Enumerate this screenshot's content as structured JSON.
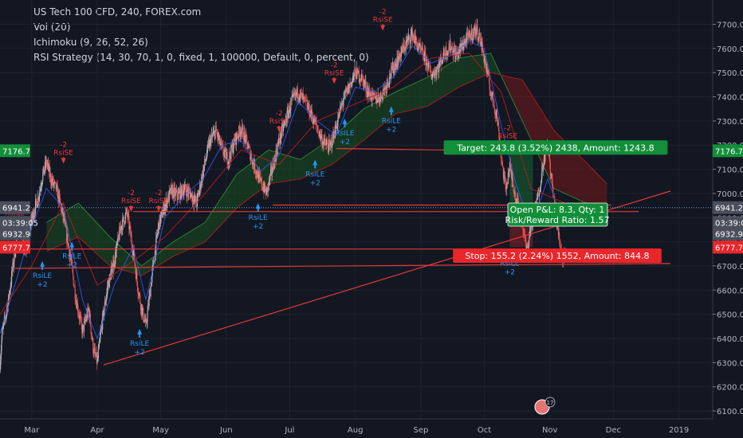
{
  "legend": {
    "symbol": "US Tech 100 CFD, 240, FOREX.com",
    "vol": "Vol (20)",
    "ichimoku": "Ichimoku (9, 26, 52, 26)",
    "strategy": "RSI Strategy (14, 30, 70, 1, 0, fixed, 1, 100000, Default, 0, percent, 0)"
  },
  "colors": {
    "background": "#131722",
    "up": "#b2b5be",
    "down": "#ef5350",
    "target": "#138f3a",
    "stop": "#e8262b",
    "buy_signal": "#2196f3",
    "sell_signal": "#e53935",
    "trendline": "#e53935",
    "cloud_green": "#1b5e20",
    "cloud_red": "#8b1a1a"
  },
  "chart_data": {
    "type": "candlestick",
    "ylim": [
      6080,
      7760
    ],
    "y_ticks": [
      6100,
      6200,
      6300,
      6400,
      6500,
      6600,
      6700,
      6800,
      6900,
      7000,
      7100,
      7200,
      7300,
      7400,
      7500,
      7600,
      7700
    ],
    "y_tick_labels": [
      "6100.0",
      "6200.0",
      "6300.0",
      "6400.0",
      "6500.0",
      "6600.0",
      "6700.0",
      "6800.0",
      "6900.0",
      "7000.0",
      "7100.0",
      "7200.0",
      "7300.0",
      "7400.0",
      "7500.0",
      "7600.0",
      "7700.0"
    ],
    "x_labels": [
      "Mar",
      "Apr",
      "May",
      "Jun",
      "Jul",
      "Aug",
      "Sep",
      "Oct",
      "Nov",
      "Dec",
      "2019"
    ],
    "x_label_days": [
      28,
      59,
      89,
      120,
      150,
      181,
      212,
      242,
      273,
      303,
      334
    ],
    "xlim_days": [
      13,
      350
    ],
    "close_path": [
      [
        13,
        6300
      ],
      [
        14,
        6420
      ],
      [
        17,
        6560
      ],
      [
        20,
        6760
      ],
      [
        22,
        6870
      ],
      [
        25,
        6750
      ],
      [
        28,
        6900
      ],
      [
        31,
        6980
      ],
      [
        33,
        7070
      ],
      [
        35,
        7130
      ],
      [
        37,
        7060
      ],
      [
        40,
        7010
      ],
      [
        43,
        6900
      ],
      [
        46,
        6750
      ],
      [
        49,
        6560
      ],
      [
        52,
        6430
      ],
      [
        55,
        6520
      ],
      [
        57,
        6360
      ],
      [
        59,
        6300
      ],
      [
        61,
        6450
      ],
      [
        64,
        6620
      ],
      [
        67,
        6720
      ],
      [
        70,
        6860
      ],
      [
        73,
        6920
      ],
      [
        76,
        6760
      ],
      [
        78,
        6620
      ],
      [
        80,
        6520
      ],
      [
        82,
        6450
      ],
      [
        84,
        6600
      ],
      [
        86,
        6740
      ],
      [
        88,
        6870
      ],
      [
        91,
        6950
      ],
      [
        94,
        7010
      ],
      [
        97,
        6990
      ],
      [
        100,
        7020
      ],
      [
        103,
        7000
      ],
      [
        106,
        6960
      ],
      [
        109,
        7090
      ],
      [
        112,
        7210
      ],
      [
        115,
        7260
      ],
      [
        118,
        7180
      ],
      [
        121,
        7140
      ],
      [
        124,
        7220
      ],
      [
        127,
        7270
      ],
      [
        130,
        7200
      ],
      [
        133,
        7120
      ],
      [
        136,
        7050
      ],
      [
        139,
        7000
      ],
      [
        142,
        7110
      ],
      [
        145,
        7220
      ],
      [
        148,
        7300
      ],
      [
        151,
        7380
      ],
      [
        154,
        7420
      ],
      [
        157,
        7380
      ],
      [
        160,
        7330
      ],
      [
        163,
        7270
      ],
      [
        166,
        7210
      ],
      [
        169,
        7190
      ],
      [
        172,
        7280
      ],
      [
        175,
        7380
      ],
      [
        178,
        7440
      ],
      [
        181,
        7500
      ],
      [
        184,
        7480
      ],
      [
        187,
        7420
      ],
      [
        190,
        7390
      ],
      [
        193,
        7400
      ],
      [
        196,
        7460
      ],
      [
        199,
        7520
      ],
      [
        202,
        7570
      ],
      [
        205,
        7620
      ],
      [
        208,
        7660
      ],
      [
        211,
        7600
      ],
      [
        214,
        7560
      ],
      [
        217,
        7490
      ],
      [
        220,
        7520
      ],
      [
        223,
        7580
      ],
      [
        226,
        7610
      ],
      [
        229,
        7570
      ],
      [
        232,
        7620
      ],
      [
        235,
        7650
      ],
      [
        238,
        7680
      ],
      [
        240,
        7640
      ],
      [
        242,
        7560
      ],
      [
        245,
        7420
      ],
      [
        248,
        7320
      ],
      [
        250,
        7150
      ],
      [
        252,
        7020
      ],
      [
        254,
        7110
      ],
      [
        257,
        6980
      ],
      [
        260,
        6880
      ],
      [
        262,
        6760
      ],
      [
        264,
        6860
      ],
      [
        266,
        6930
      ],
      [
        268,
        7020
      ],
      [
        270,
        7140
      ],
      [
        272,
        7200
      ],
      [
        274,
        7040
      ],
      [
        276,
        6880
      ],
      [
        278,
        6790
      ],
      [
        279,
        6732
      ],
      [
        280,
        6760
      ]
    ],
    "tenkan_path": [
      [
        13,
        6420
      ],
      [
        20,
        6620
      ],
      [
        28,
        6860
      ],
      [
        35,
        7020
      ],
      [
        43,
        6940
      ],
      [
        52,
        6560
      ],
      [
        59,
        6400
      ],
      [
        67,
        6620
      ],
      [
        76,
        6780
      ],
      [
        82,
        6560
      ],
      [
        91,
        6900
      ],
      [
        100,
        6990
      ],
      [
        109,
        7060
      ],
      [
        118,
        7200
      ],
      [
        127,
        7220
      ],
      [
        136,
        7090
      ],
      [
        145,
        7160
      ],
      [
        154,
        7380
      ],
      [
        163,
        7300
      ],
      [
        172,
        7240
      ],
      [
        181,
        7440
      ],
      [
        190,
        7420
      ],
      [
        199,
        7480
      ],
      [
        208,
        7610
      ],
      [
        217,
        7540
      ],
      [
        226,
        7570
      ],
      [
        235,
        7630
      ],
      [
        242,
        7600
      ],
      [
        250,
        7280
      ],
      [
        257,
        7040
      ],
      [
        264,
        6860
      ],
      [
        272,
        7060
      ],
      [
        280,
        6860
      ]
    ],
    "kijun_path": [
      [
        13,
        6500
      ],
      [
        28,
        6700
      ],
      [
        43,
        6960
      ],
      [
        59,
        6620
      ],
      [
        76,
        6720
      ],
      [
        91,
        6820
      ],
      [
        109,
        6990
      ],
      [
        127,
        7180
      ],
      [
        145,
        7120
      ],
      [
        163,
        7300
      ],
      [
        181,
        7370
      ],
      [
        199,
        7440
      ],
      [
        217,
        7560
      ],
      [
        235,
        7580
      ],
      [
        250,
        7420
      ],
      [
        264,
        7020
      ],
      [
        280,
        6960
      ]
    ],
    "cloud_a": [
      [
        35,
        6880
      ],
      [
        50,
        6960
      ],
      [
        65,
        6820
      ],
      [
        80,
        6700
      ],
      [
        95,
        6800
      ],
      [
        110,
        6880
      ],
      [
        125,
        7080
      ],
      [
        140,
        7180
      ],
      [
        155,
        7140
      ],
      [
        170,
        7230
      ],
      [
        185,
        7350
      ],
      [
        200,
        7420
      ],
      [
        215,
        7480
      ],
      [
        230,
        7560
      ],
      [
        245,
        7580
      ],
      [
        260,
        7300
      ],
      [
        275,
        7020
      ],
      [
        290,
        6960
      ],
      [
        300,
        6940
      ]
    ],
    "cloud_b": [
      [
        35,
        6760
      ],
      [
        50,
        6820
      ],
      [
        65,
        6700
      ],
      [
        80,
        6660
      ],
      [
        95,
        6740
      ],
      [
        110,
        6800
      ],
      [
        125,
        6940
      ],
      [
        140,
        7040
      ],
      [
        155,
        7060
      ],
      [
        170,
        7120
      ],
      [
        185,
        7220
      ],
      [
        200,
        7330
      ],
      [
        215,
        7360
      ],
      [
        230,
        7440
      ],
      [
        245,
        7500
      ],
      [
        260,
        7470
      ],
      [
        275,
        7260
      ],
      [
        290,
        7130
      ],
      [
        300,
        7040
      ]
    ],
    "horizontal_levels": [
      {
        "y1": 7186,
        "y2": 7168,
        "x1": 172,
        "x2": 315
      },
      {
        "y1": 6952,
        "y2": 6952,
        "x1": 142,
        "x2": 302
      },
      {
        "y1": 6925,
        "y2": 6925,
        "x1": 76,
        "x2": 315
      },
      {
        "y1": 6770,
        "y2": 6770,
        "x1": 20,
        "x2": 285
      },
      {
        "y1": 6690,
        "y2": 6710,
        "x1": 20,
        "x2": 330
      }
    ],
    "trendline": {
      "x1": 62,
      "y1": 6290,
      "x2": 330,
      "y2": 7010
    },
    "signals": [
      {
        "type": "RsiSE",
        "qty": "-2",
        "day": 20,
        "price": 6870
      },
      {
        "type": "RsiLE",
        "qty": "+2",
        "day": 33,
        "price": 6720
      },
      {
        "type": "RsiSE",
        "qty": "-2",
        "day": 43,
        "price": 7120
      },
      {
        "type": "RsiLE",
        "qty": "+2",
        "day": 47,
        "price": 6800
      },
      {
        "type": "RsiSE",
        "qty": "-2",
        "day": 75,
        "price": 6920
      },
      {
        "type": "RsiLE",
        "qty": "+2",
        "day": 79,
        "price": 6440
      },
      {
        "type": "RsiSE",
        "qty": "-2",
        "day": 88,
        "price": 6920
      },
      {
        "type": "RsiLE",
        "qty": "+2",
        "day": 135,
        "price": 6960
      },
      {
        "type": "RsiSE",
        "qty": "-2",
        "day": 145,
        "price": 7250
      },
      {
        "type": "RsiLE",
        "qty": "+2",
        "day": 162,
        "price": 7140
      },
      {
        "type": "RsiSE",
        "qty": "-2",
        "day": 171,
        "price": 7450
      },
      {
        "type": "RsiLE",
        "qty": "+2",
        "day": 176,
        "price": 7310
      },
      {
        "type": "RsiSE",
        "qty": "-2",
        "day": 194,
        "price": 7670
      },
      {
        "type": "RsiLE",
        "qty": "+2",
        "day": 198,
        "price": 7360
      },
      {
        "type": "RsiSE",
        "qty": "-2",
        "day": 253,
        "price": 7190
      },
      {
        "type": "RsiLE",
        "qty": "+2",
        "day": 254,
        "price": 6770
      }
    ],
    "position": {
      "entry": 6932.9,
      "target_price": 7176.7,
      "stop_price": 6777.7,
      "day_start": 254,
      "day_end": 265,
      "target_label": "Target: 243.8 (3.52%) 2438, Amount: 1243.8",
      "stop_label": "Stop: 155.2 (2.24%) 1552, Amount: 844.8",
      "pnl_label": "Open P&L: 8.3, Qty: 1",
      "rr_label": "Risk/Reward Ratio: 1.57"
    },
    "price_labels": [
      {
        "text": "7176.7",
        "price": 7176.7,
        "color": "#138f3a"
      },
      {
        "text": "6941.2",
        "price": 6941.2,
        "color": "#4a4f5c"
      },
      {
        "text": "03:39:05",
        "price": 6880,
        "color": "#4a4f5c"
      },
      {
        "text": "6932.9",
        "price": 6832.9,
        "color": "#4a4f5c"
      },
      {
        "text": "6777.7",
        "price": 6777.7,
        "color": "#e8262b"
      }
    ],
    "news_badge": "17"
  }
}
